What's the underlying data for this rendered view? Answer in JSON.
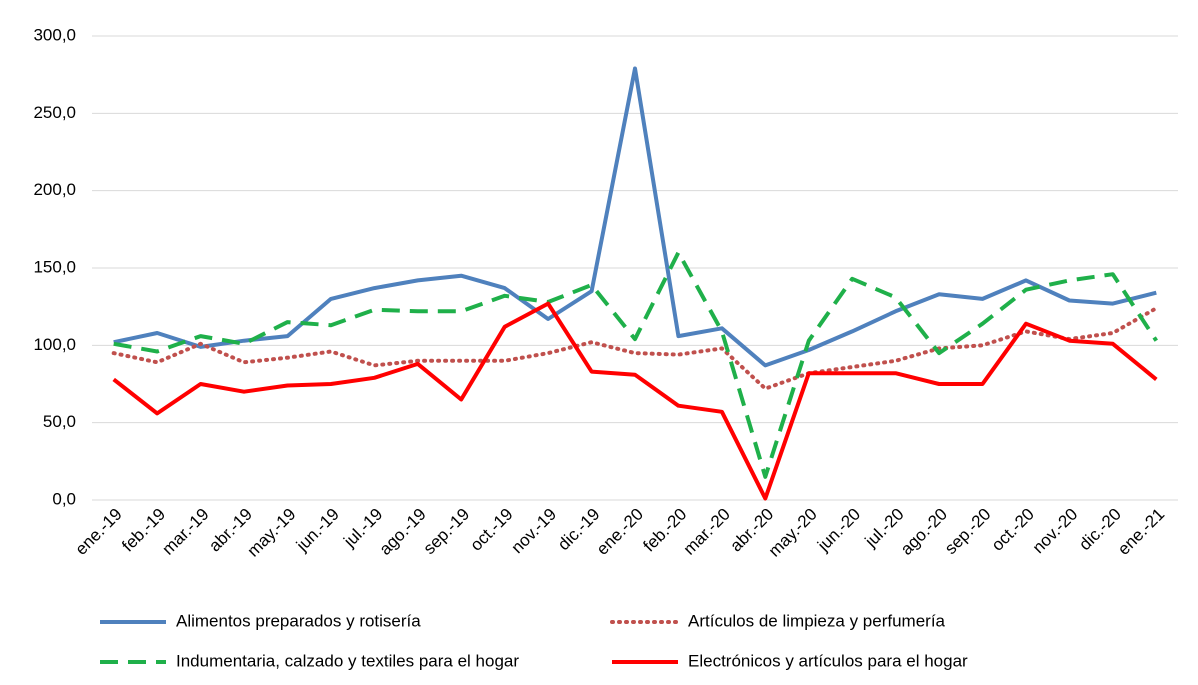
{
  "chart_data": {
    "type": "line",
    "categories": [
      "ene.-19",
      "feb.-19",
      "mar.-19",
      "abr.-19",
      "may.-19",
      "jun.-19",
      "jul.-19",
      "ago.-19",
      "sep.-19",
      "oct.-19",
      "nov.-19",
      "dic.-19",
      "ene.-20",
      "feb.-20",
      "mar.-20",
      "abr.-20",
      "may.-20",
      "jun.-20",
      "jul.-20",
      "ago.-20",
      "sep.-20",
      "oct.-20",
      "nov.-20",
      "dic.-20",
      "ene.-21"
    ],
    "series": [
      {
        "name": "Alimentos preparados y rotisería",
        "color": "#4f81bd",
        "style": "solid",
        "values": [
          102,
          108,
          99,
          103,
          106,
          130,
          137,
          142,
          145,
          137,
          117,
          135,
          279,
          106,
          111,
          87,
          97,
          109,
          122,
          133,
          130,
          142,
          129,
          127,
          134
        ]
      },
      {
        "name": "Artículos de limpieza y perfumería",
        "color": "#c0504d",
        "style": "dotted",
        "values": [
          95,
          89,
          101,
          89,
          92,
          96,
          87,
          90,
          90,
          90,
          95,
          102,
          95,
          94,
          98,
          72,
          82,
          86,
          90,
          98,
          100,
          109,
          104,
          108,
          124
        ]
      },
      {
        "name": "Indumentaria, calzado y textiles para el hogar",
        "color": "#1fb04a",
        "style": "dashed",
        "values": [
          101,
          96,
          106,
          101,
          115,
          113,
          123,
          122,
          122,
          132,
          128,
          139,
          104,
          160,
          109,
          15,
          103,
          143,
          131,
          95,
          114,
          136,
          142,
          146,
          103
        ]
      },
      {
        "name": "Electrónicos y artículos para el hogar",
        "color": "#ff0000",
        "style": "solid",
        "values": [
          78,
          56,
          75,
          70,
          74,
          75,
          79,
          88,
          65,
          112,
          127,
          83,
          81,
          61,
          57,
          1,
          82,
          82,
          82,
          75,
          75,
          114,
          103,
          101,
          78
        ]
      }
    ],
    "ylim": [
      0,
      300
    ],
    "yticks": [
      {
        "value": 0,
        "label": "0,0"
      },
      {
        "value": 50,
        "label": "50,0"
      },
      {
        "value": 100,
        "label": "100,0"
      },
      {
        "value": 150,
        "label": "150,0"
      },
      {
        "value": 200,
        "label": "200,0"
      },
      {
        "value": 250,
        "label": "250,0"
      },
      {
        "value": 300,
        "label": "300,0"
      }
    ],
    "grid": true,
    "legend": "bottom"
  }
}
